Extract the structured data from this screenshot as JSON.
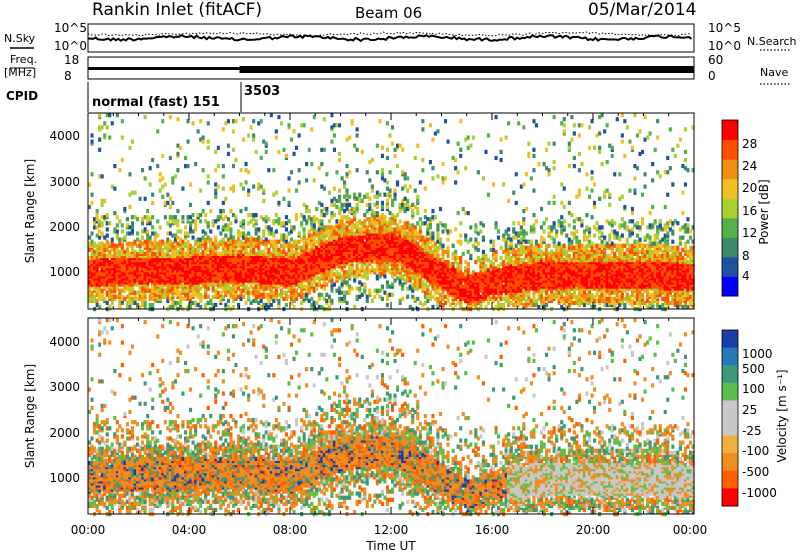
{
  "header": {
    "station": "Rankin Inlet (fitACF)",
    "beam": "Beam 06",
    "date": "05/Mar/2014"
  },
  "noise_panel": {
    "left_label": "N.Sky",
    "right_label": "N.Search",
    "left_ticks": [
      "10^5",
      "10^0"
    ],
    "right_ticks": [
      "10^5",
      "10^0"
    ]
  },
  "freq_panel": {
    "left_label_1": "Freq.",
    "left_label_2": "[MHz]",
    "left_ticks": [
      "18",
      "8"
    ],
    "right_label": "Nave",
    "right_ticks": [
      "60",
      "0"
    ]
  },
  "cpid": {
    "label": "CPID",
    "segments": [
      {
        "start_hour": 0,
        "text": "normal (fast) 151"
      },
      {
        "start_hour": 6,
        "text": "3503"
      }
    ]
  },
  "power_panel": {
    "ylabel": "Slant Range [km]",
    "yticks": [
      "1000",
      "2000",
      "3000",
      "4000"
    ],
    "colorbar_label": "Power [dB]",
    "colorbar_ticks": [
      "4",
      "8",
      "12",
      "16",
      "20",
      "24",
      "28"
    ],
    "colors": [
      "#0000ff",
      "#2050a0",
      "#3c8a6a",
      "#52b24a",
      "#a8d030",
      "#f0c020",
      "#f08c10",
      "#ff5000",
      "#ff0000"
    ]
  },
  "velocity_panel": {
    "ylabel": "Slant Range [km]",
    "yticks": [
      "1000",
      "2000",
      "3000",
      "4000"
    ],
    "colorbar_label": "Velocity [m s⁻¹]",
    "colorbar_ticks": [
      "1000",
      "500",
      "100",
      "25",
      "-25",
      "-100",
      "-500",
      "-1000"
    ],
    "colors": [
      "#1c3ca8",
      "#2478b8",
      "#3c9878",
      "#58c048",
      "#c8c8c8",
      "#c8c8c8",
      "#f0b040",
      "#f08c20",
      "#ff6000",
      "#ff0000"
    ]
  },
  "xaxis": {
    "label": "Time UT",
    "ticks": [
      "00:00",
      "04:00",
      "08:00",
      "12:00",
      "16:00",
      "20:00",
      "00:00"
    ]
  },
  "chart_data": [
    {
      "type": "heatmap",
      "title": "Power [dB]",
      "xlabel": "Time UT",
      "ylabel": "Slant Range [km]",
      "xlim_hours": [
        0,
        24
      ],
      "ylim_km": [
        180,
        4500
      ],
      "colorbar_range": [
        0,
        30
      ],
      "echo_band_center_km": [
        [
          0,
          1000
        ],
        [
          2,
          1050
        ],
        [
          4,
          1050
        ],
        [
          6,
          1100
        ],
        [
          8,
          1000
        ],
        [
          10,
          1500
        ],
        [
          12,
          1600
        ],
        [
          13,
          1300
        ],
        [
          14,
          900
        ],
        [
          15,
          600
        ],
        [
          16,
          800
        ],
        [
          18,
          950
        ],
        [
          20,
          950
        ],
        [
          22,
          950
        ],
        [
          24,
          900
        ]
      ]
    },
    {
      "type": "heatmap",
      "title": "Velocity [m s⁻¹]",
      "xlabel": "Time UT",
      "ylabel": "Slant Range [km]",
      "xlim_hours": [
        0,
        24
      ],
      "ylim_km": [
        180,
        4500
      ],
      "colorbar_range": [
        -1000,
        1000
      ]
    },
    {
      "type": "line",
      "title": "N.Sky",
      "xlim_hours": [
        0,
        24
      ]
    }
  ]
}
